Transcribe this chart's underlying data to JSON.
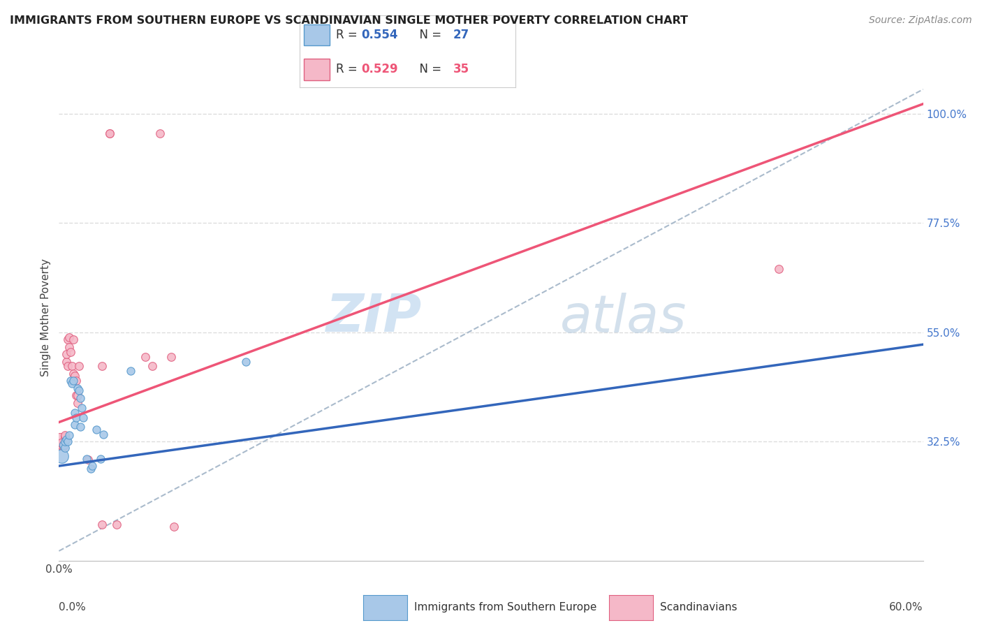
{
  "title": "IMMIGRANTS FROM SOUTHERN EUROPE VS SCANDINAVIAN SINGLE MOTHER POVERTY CORRELATION CHART",
  "source": "Source: ZipAtlas.com",
  "ylabel": "Single Mother Poverty",
  "legend_blue_r": "R = 0.554",
  "legend_blue_n": "N = 27",
  "legend_pink_r": "R = 0.529",
  "legend_pink_n": "N = 35",
  "legend_blue_label": "Immigrants from Southern Europe",
  "legend_pink_label": "Scandinavians",
  "watermark_zip": "ZIP",
  "watermark_atlas": "atlas",
  "blue_fill": "#a8c8e8",
  "pink_fill": "#f5b8c8",
  "blue_edge": "#5599cc",
  "pink_edge": "#e06080",
  "blue_line": "#3366bb",
  "pink_line": "#ee5577",
  "dash_line": "#aabbcc",
  "bg": "#ffffff",
  "grid_color": "#dddddd",
  "blue_r_color": "#3366bb",
  "pink_r_color": "#ee5577",
  "n_color": "#3366bb",
  "blue_points": [
    [
      0.002,
      0.295,
      200
    ],
    [
      0.003,
      0.318,
      80
    ],
    [
      0.004,
      0.312,
      70
    ],
    [
      0.004,
      0.325,
      70
    ],
    [
      0.005,
      0.33,
      65
    ],
    [
      0.006,
      0.325,
      65
    ],
    [
      0.007,
      0.338,
      65
    ],
    [
      0.008,
      0.45,
      65
    ],
    [
      0.009,
      0.445,
      65
    ],
    [
      0.01,
      0.45,
      65
    ],
    [
      0.011,
      0.385,
      65
    ],
    [
      0.011,
      0.36,
      65
    ],
    [
      0.012,
      0.375,
      65
    ],
    [
      0.013,
      0.435,
      65
    ],
    [
      0.014,
      0.43,
      65
    ],
    [
      0.015,
      0.415,
      65
    ],
    [
      0.015,
      0.355,
      65
    ],
    [
      0.016,
      0.395,
      65
    ],
    [
      0.017,
      0.375,
      65
    ],
    [
      0.019,
      0.29,
      65
    ],
    [
      0.022,
      0.27,
      65
    ],
    [
      0.023,
      0.275,
      65
    ],
    [
      0.026,
      0.35,
      65
    ],
    [
      0.029,
      0.29,
      65
    ],
    [
      0.031,
      0.34,
      65
    ],
    [
      0.05,
      0.47,
      65
    ],
    [
      0.13,
      0.49,
      65
    ]
  ],
  "pink_points": [
    [
      0.001,
      0.325,
      300
    ],
    [
      0.002,
      0.318,
      90
    ],
    [
      0.002,
      0.323,
      80
    ],
    [
      0.003,
      0.315,
      75
    ],
    [
      0.003,
      0.32,
      70
    ],
    [
      0.004,
      0.335,
      70
    ],
    [
      0.004,
      0.338,
      70
    ],
    [
      0.005,
      0.49,
      70
    ],
    [
      0.005,
      0.505,
      70
    ],
    [
      0.006,
      0.48,
      70
    ],
    [
      0.006,
      0.535,
      70
    ],
    [
      0.007,
      0.54,
      70
    ],
    [
      0.007,
      0.52,
      70
    ],
    [
      0.008,
      0.51,
      70
    ],
    [
      0.009,
      0.48,
      70
    ],
    [
      0.01,
      0.535,
      70
    ],
    [
      0.01,
      0.465,
      70
    ],
    [
      0.011,
      0.46,
      70
    ],
    [
      0.012,
      0.45,
      70
    ],
    [
      0.012,
      0.42,
      70
    ],
    [
      0.013,
      0.42,
      70
    ],
    [
      0.013,
      0.405,
      70
    ],
    [
      0.014,
      0.48,
      70
    ],
    [
      0.02,
      0.288,
      70
    ],
    [
      0.03,
      0.155,
      70
    ],
    [
      0.035,
      0.96,
      70
    ],
    [
      0.035,
      0.96,
      70
    ],
    [
      0.04,
      0.155,
      70
    ],
    [
      0.06,
      0.5,
      70
    ],
    [
      0.065,
      0.48,
      70
    ],
    [
      0.07,
      0.96,
      70
    ],
    [
      0.5,
      0.68,
      70
    ],
    [
      0.078,
      0.5,
      70
    ],
    [
      0.08,
      0.15,
      70
    ],
    [
      0.03,
      0.48,
      70
    ]
  ],
  "blue_trend": [
    0.0,
    0.275,
    0.6,
    0.525
  ],
  "pink_trend": [
    0.0,
    0.365,
    0.6,
    1.02
  ],
  "dash_trend": [
    0.0,
    0.1,
    0.6,
    1.05
  ],
  "xlim": [
    0.0,
    0.6
  ],
  "ylim": [
    0.08,
    1.08
  ],
  "xticks": [
    0.0,
    0.1,
    0.2,
    0.3,
    0.4,
    0.5,
    0.6
  ],
  "ytick_vals": [
    1.0,
    0.775,
    0.55,
    0.325
  ],
  "ytick_labels": [
    "100.0%",
    "77.5%",
    "55.0%",
    "32.5%"
  ]
}
